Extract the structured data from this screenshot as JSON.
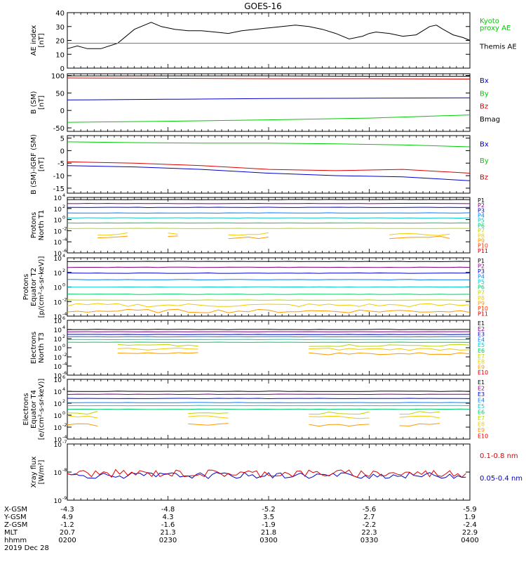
{
  "title": "GOES-16",
  "x_ticks": [
    "0200",
    "0230",
    "0300",
    "0330",
    "0400"
  ],
  "ephemeris": {
    "rows": [
      {
        "label": "X-GSM",
        "values": [
          "-4.3",
          "-4.8",
          "-5.2",
          "-5.6",
          "-5.9"
        ]
      },
      {
        "label": "Y-GSM",
        "values": [
          "4.9",
          "4.3",
          "3.5",
          "2.7",
          "1.9"
        ]
      },
      {
        "label": "Z-GSM",
        "values": [
          "-1.2",
          "-1.6",
          "-1.9",
          "-2.2",
          "-2.4"
        ]
      },
      {
        "label": "MLT",
        "values": [
          "20.7",
          "21.3",
          "21.8",
          "22.3",
          "22.9"
        ]
      },
      {
        "label": "hhmm",
        "values": [
          "0200",
          "0230",
          "0300",
          "0330",
          "0400"
        ]
      }
    ],
    "date": "2019 Dec 28"
  },
  "colors": {
    "black": "#000000",
    "blue": "#0000cc",
    "green": "#00cc00",
    "red": "#dd0000",
    "p_channels": [
      "#000000",
      "#800080",
      "#0000cc",
      "#0080ff",
      "#00cccc",
      "#00cc66",
      "#b8d800",
      "#eecc00",
      "#ff9900",
      "#ff3300",
      "#cc0000"
    ],
    "e_channels": [
      "#000000",
      "#800080",
      "#0000cc",
      "#0080ff",
      "#00cccc",
      "#00cc66",
      "#b8d800",
      "#eecc00",
      "#ff9900",
      "#dd0000"
    ]
  },
  "chart_data": [
    {
      "type": "line",
      "id": "ae",
      "ylabel": "AE index\n[nT]",
      "ylim": [
        0,
        40
      ],
      "yticks": [
        "0",
        "10",
        "20",
        "30",
        "40"
      ],
      "x_range_minutes": [
        0,
        120
      ],
      "legend": [
        {
          "text": "Kyoto\nproxy AE",
          "color": "#00cc00"
        },
        {
          "text": "Themis AE",
          "color": "#000000"
        }
      ],
      "series": [
        {
          "color": "#000000",
          "x": [
            0,
            3,
            6,
            10,
            15,
            20,
            25,
            28,
            32,
            36,
            40,
            44,
            48,
            52,
            56,
            60,
            64,
            68,
            72,
            76,
            80,
            84,
            88,
            90,
            92,
            96,
            100,
            104,
            108,
            110,
            112,
            115,
            118,
            120
          ],
          "y": [
            14,
            16,
            14,
            14,
            18,
            28,
            33,
            30,
            28,
            27,
            27,
            26,
            25,
            27,
            28,
            29,
            30,
            31,
            30,
            28,
            25,
            21,
            23,
            25,
            26,
            25,
            23,
            24,
            30,
            31,
            28,
            24,
            22,
            20
          ]
        },
        {
          "color": "#00cc00",
          "x": [
            0,
            120
          ],
          "y": [
            18,
            18
          ]
        }
      ]
    },
    {
      "type": "line",
      "id": "bsm",
      "ylabel": "B (SM)\n[nT]",
      "ylim": [
        -60,
        105
      ],
      "yticks": [
        "-50",
        "0",
        "50",
        "100"
      ],
      "legend": [
        {
          "text": "Bx",
          "color": "#0000cc"
        },
        {
          "text": "By",
          "color": "#00cc00"
        },
        {
          "text": "Bz",
          "color": "#dd0000"
        },
        {
          "text": "Bmag",
          "color": "#000000"
        }
      ],
      "series": [
        {
          "color": "#000000",
          "x": [
            0,
            30,
            60,
            90,
            120
          ],
          "y": [
            99,
            99,
            99,
            98,
            98
          ]
        },
        {
          "color": "#dd0000",
          "x": [
            0,
            30,
            60,
            90,
            120
          ],
          "y": [
            93,
            92,
            91,
            91,
            90
          ]
        },
        {
          "color": "#0000cc",
          "x": [
            0,
            30,
            60,
            90,
            120
          ],
          "y": [
            30,
            32,
            34,
            35,
            36
          ]
        },
        {
          "color": "#00cc00",
          "x": [
            0,
            30,
            60,
            90,
            120
          ],
          "y": [
            -34,
            -31,
            -27,
            -22,
            -13
          ]
        }
      ]
    },
    {
      "type": "line",
      "id": "bigrf",
      "ylabel": "B (SM)-IGRF (SM)\n[nT]",
      "ylim": [
        -17,
        6
      ],
      "yticks": [
        "-15",
        "-10",
        "-5",
        "0",
        "5"
      ],
      "legend": [
        {
          "text": "Bx",
          "color": "#0000cc"
        },
        {
          "text": "By",
          "color": "#00cc00"
        },
        {
          "text": "Bz",
          "color": "#dd0000"
        }
      ],
      "series": [
        {
          "color": "#00cc00",
          "x": [
            0,
            20,
            40,
            60,
            80,
            100,
            120
          ],
          "y": [
            3.5,
            3.2,
            3.0,
            3.0,
            2.7,
            2.3,
            1.5
          ]
        },
        {
          "color": "#dd0000",
          "x": [
            0,
            20,
            40,
            60,
            80,
            100,
            120
          ],
          "y": [
            -4.5,
            -5,
            -6,
            -7.5,
            -8,
            -7.5,
            -9
          ]
        },
        {
          "color": "#0000cc",
          "x": [
            0,
            20,
            40,
            60,
            80,
            100,
            120
          ],
          "y": [
            -6,
            -6.5,
            -7.5,
            -9,
            -10,
            -10.5,
            -12
          ]
        }
      ]
    },
    {
      "type": "line",
      "id": "pt1",
      "log": true,
      "ylabel": "Protons\nNorth T1",
      "ylim": [
        -6,
        4
      ],
      "yticks": [
        {
          "b": "10",
          "e": "4"
        },
        {
          "b": "10",
          "e": "2"
        },
        {
          "b": "10",
          "e": "0"
        },
        {
          "b": "10",
          "e": "-2"
        },
        {
          "b": "10",
          "e": "-4"
        },
        {
          "b": "10",
          "e": "-6"
        }
      ],
      "labels": [
        "P1",
        "P2",
        "P3",
        "P4",
        "P5",
        "P6",
        "P7",
        "P8",
        "P9",
        "P10",
        "P11"
      ],
      "levels": [
        3.6,
        2.9,
        2.2,
        1.2,
        0.3,
        -0.6,
        -1.6,
        -2.6,
        -3.2,
        null,
        null
      ]
    },
    {
      "type": "line",
      "id": "pt2",
      "log": true,
      "ylabel": "Protons\nEquator T2\n[p/(cm²-s-sr-keV)]",
      "ylim": [
        -4,
        4
      ],
      "yticks": [
        {
          "b": "10",
          "e": "4"
        },
        {
          "b": "10",
          "e": "2"
        },
        {
          "b": "10",
          "e": "0"
        },
        {
          "b": "10",
          "e": "-2"
        },
        {
          "b": "10",
          "e": "-4"
        }
      ],
      "labels": [
        "P1",
        "P2",
        "P3",
        "P4",
        "P5",
        "P6",
        "P7",
        "P8",
        "P9",
        "P10",
        "P11"
      ],
      "levels": [
        3.5,
        2.7,
        1.9,
        1.0,
        0.0,
        -1.0,
        -1.8,
        -2.5,
        -3.3,
        null,
        null
      ]
    },
    {
      "type": "line",
      "id": "et3",
      "log": true,
      "ylabel": "Electrons\nNorth T3",
      "ylim": [
        -6,
        6
      ],
      "yticks": [
        {
          "b": "10",
          "e": "6"
        },
        {
          "b": "10",
          "e": "4"
        },
        {
          "b": "10",
          "e": "2"
        },
        {
          "b": "10",
          "e": "0"
        },
        {
          "b": "10",
          "e": "-2"
        },
        {
          "b": "10",
          "e": "-4"
        },
        {
          "b": "10",
          "e": "-6"
        }
      ],
      "labels": [
        "E1",
        "E2",
        "E3",
        "E4",
        "E5",
        "E6",
        "E7",
        "E8",
        "E9",
        "E10"
      ],
      "levels": [
        4.0,
        3.5,
        2.9,
        2.4,
        1.8,
        1.2,
        0.5,
        -0.3,
        -1.3,
        null
      ]
    },
    {
      "type": "line",
      "id": "et4",
      "log": true,
      "ylabel": "Electrons\nEquator T4\n[e/(cm²-s-sr-keV)]",
      "ylim": [
        -4,
        6
      ],
      "yticks": [
        {
          "b": "10",
          "e": "6"
        },
        {
          "b": "10",
          "e": "4"
        },
        {
          "b": "10",
          "e": "2"
        },
        {
          "b": "10",
          "e": "0"
        },
        {
          "b": "10",
          "e": "-2"
        },
        {
          "b": "10",
          "e": "-4"
        }
      ],
      "labels": [
        "E1",
        "E2",
        "E3",
        "E4",
        "E5",
        "E6",
        "E7",
        "E8",
        "E9",
        "E10"
      ],
      "levels": [
        4.0,
        3.5,
        2.8,
        2.1,
        1.6,
        1.0,
        0.4,
        -0.3,
        -1.6,
        null
      ]
    },
    {
      "type": "line",
      "id": "xray",
      "log": true,
      "ylabel": "Xray flux\n[W/m²]",
      "ylim": [
        -9,
        -7
      ],
      "yticks": [
        {
          "b": "10",
          "e": "-7"
        },
        {
          "b": "10",
          "e": "-8"
        },
        {
          "b": "10",
          "e": "-9"
        }
      ],
      "legend": [
        {
          "text": "0.1-0.8 nm",
          "color": "#dd0000"
        },
        {
          "text": "0.05-0.4 nm",
          "color": "#0000cc"
        }
      ]
    }
  ]
}
